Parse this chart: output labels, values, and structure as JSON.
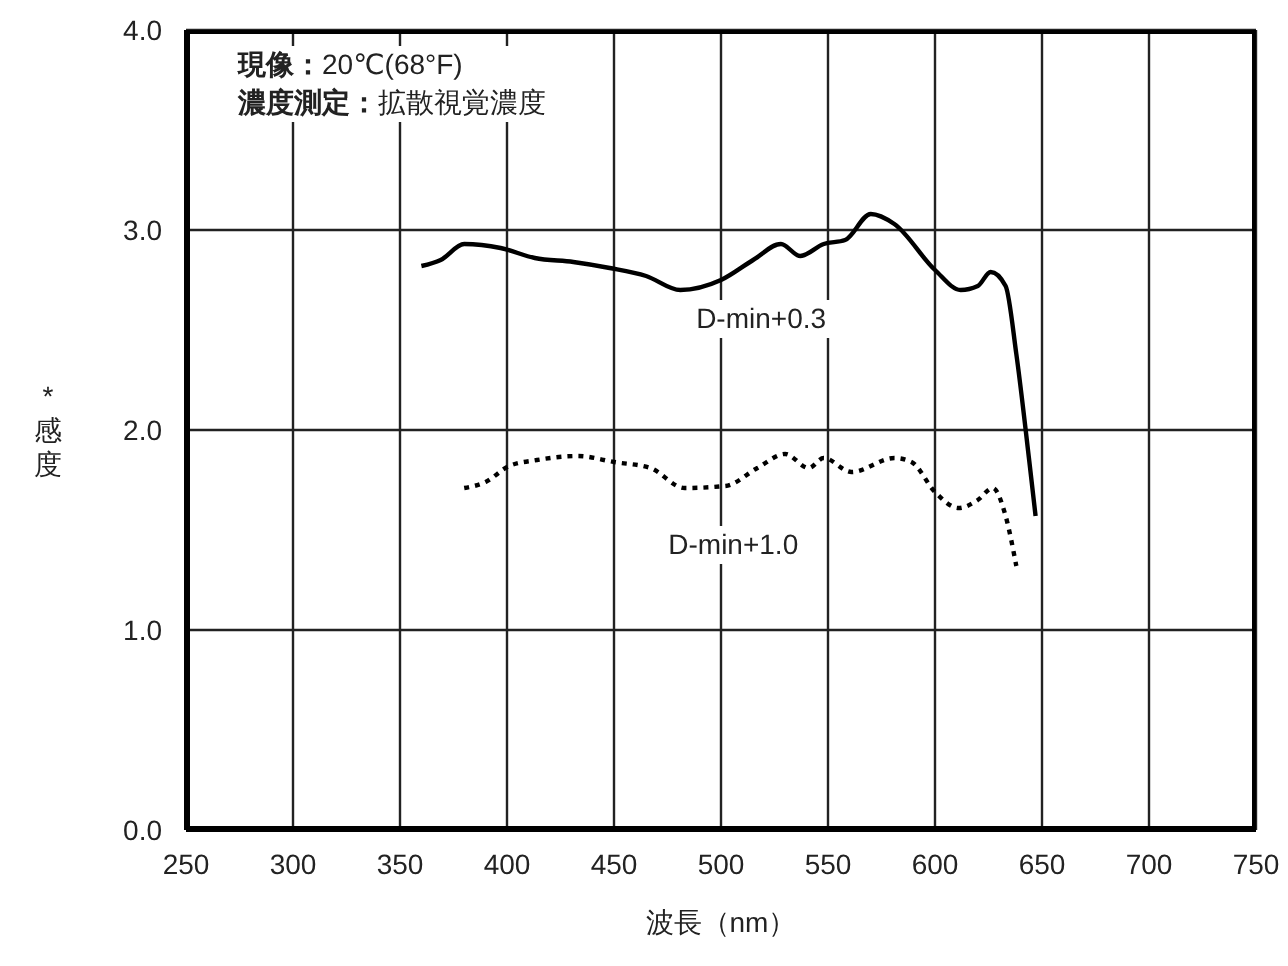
{
  "chart_data": {
    "type": "line",
    "xlabel": "波長（nm）",
    "ylabel": "*感度",
    "annotations": [
      "現像：20℃(68°F)",
      "濃度測定：拡散視覚濃度"
    ],
    "xlim": [
      250,
      750
    ],
    "xticks": [
      250,
      300,
      350,
      400,
      450,
      500,
      550,
      600,
      650,
      700,
      750
    ],
    "ylim": [
      0,
      4
    ],
    "yticks": [
      {
        "value": 0,
        "label": "0.0"
      },
      {
        "value": 1,
        "label": "1.0"
      },
      {
        "value": 2,
        "label": "2.0"
      },
      {
        "value": 3,
        "label": "3.0"
      },
      {
        "value": 4,
        "label": "4.0"
      }
    ],
    "grid": true,
    "marker": "none",
    "series": [
      {
        "name": "D-min+0.3",
        "color": "#000000",
        "line_style": "solid",
        "x": [
          360,
          369,
          380,
          397,
          413,
          431,
          448,
          465,
          481,
          500,
          515,
          528,
          537,
          548,
          558,
          570,
          581,
          600,
          612,
          620,
          626,
          633,
          638,
          644,
          647
        ],
        "values": [
          2.82,
          2.85,
          2.93,
          2.91,
          2.86,
          2.84,
          2.81,
          2.77,
          2.7,
          2.75,
          2.85,
          2.93,
          2.87,
          2.93,
          2.95,
          3.08,
          3.03,
          2.8,
          2.7,
          2.72,
          2.79,
          2.72,
          2.38,
          1.85,
          1.57
        ]
      },
      {
        "name": "D-min+1.0",
        "color": "#000000",
        "line_style": "dotted",
        "x": [
          380,
          390,
          401,
          414,
          433,
          450,
          467,
          483,
          502,
          517,
          530,
          541,
          548,
          561,
          581,
          589,
          600,
          611,
          620,
          627,
          633,
          638
        ],
        "values": [
          1.71,
          1.74,
          1.82,
          1.85,
          1.87,
          1.84,
          1.81,
          1.71,
          1.72,
          1.81,
          1.88,
          1.81,
          1.86,
          1.79,
          1.86,
          1.84,
          1.69,
          1.61,
          1.65,
          1.71,
          1.57,
          1.32
        ]
      }
    ]
  }
}
